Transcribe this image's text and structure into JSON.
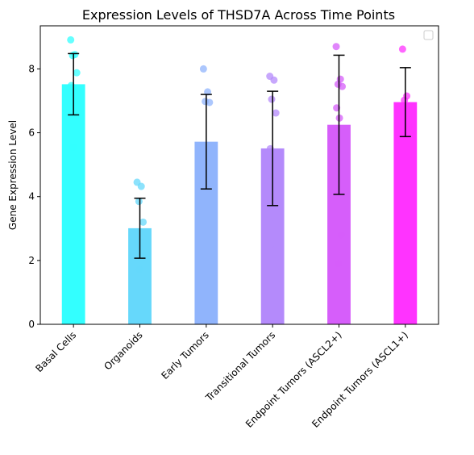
{
  "chart_data": {
    "type": "bar",
    "title": "Expression Levels of THSD7A Across Time Points",
    "xlabel": "",
    "ylabel": "Gene Expression Level",
    "ylim": [
      0,
      9.35
    ],
    "yticks": [
      0,
      2,
      4,
      6,
      8
    ],
    "grid": false,
    "legend": {
      "placement": "top-right",
      "entries": []
    },
    "categories": [
      "Basal Cells",
      "Organoids",
      "Early Tumors",
      "Transitional Tumors",
      "Endpoint Tumors (ASCL2+)",
      "Endpoint Tumors (ASCL1+)"
    ],
    "values": [
      7.52,
      3.01,
      5.72,
      5.51,
      6.25,
      6.96
    ],
    "errors": [
      0.96,
      0.94,
      1.48,
      1.79,
      2.18,
      1.08
    ],
    "colors": [
      "#33ffff",
      "#66d8fb",
      "#90b4fc",
      "#b48afb",
      "#d65efa",
      "#ff33ff"
    ],
    "points": [
      [
        8.91,
        8.45,
        8.42,
        7.88,
        7.48,
        7.4,
        6.95,
        5.55
      ],
      [
        4.45,
        4.32,
        3.85,
        3.2,
        2.55,
        2.45,
        2.15,
        1.72
      ],
      [
        8.0,
        7.28,
        6.98,
        6.95,
        5.45,
        5.1,
        4.95,
        4.0,
        3.55
      ],
      [
        7.77,
        7.65,
        7.05,
        6.62,
        5.5,
        4.98,
        4.92,
        4.62,
        3.35,
        2.5
      ],
      [
        8.7,
        7.68,
        7.52,
        7.45,
        6.78,
        6.46,
        2.8,
        1.9
      ],
      [
        8.62,
        7.15,
        7.02,
        6.18,
        5.9,
        5.88
      ]
    ]
  }
}
